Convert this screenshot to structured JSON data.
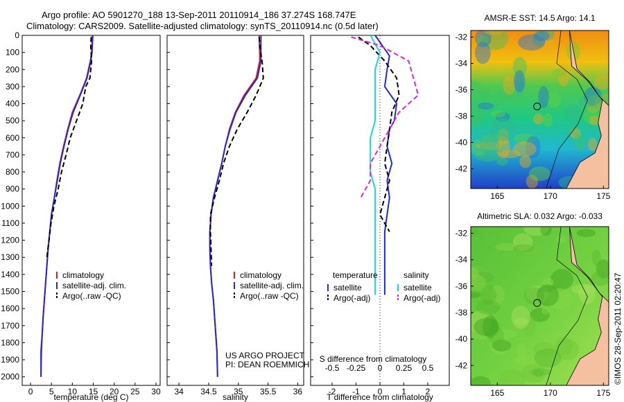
{
  "title_line1": "Argo profile: AO 5901270_188 13-Sep-2011 20110914_186 37.274S 168.747E",
  "title_line2": "Climatology: CARS2009. Satellite-adjusted climatology: synTS_20110914.nc (0.5d later)",
  "credit_line1": "US ARGO PROJECT",
  "credit_line2": "PI: DEAN ROEMMICH",
  "footer_stamp": "©IMOS 28-Sep-2011 02:20:47",
  "colors": {
    "red": "#e8141e",
    "blue": "#1e28dc",
    "cyan": "#10d8e8",
    "magenta": "#e020e0",
    "black": "#000000",
    "land": "#f4c0a0"
  },
  "chart_data": [
    {
      "type": "line",
      "xlabel": "temperature (deg C)",
      "ylabel": "",
      "xlim": [
        -2,
        31
      ],
      "ylim": [
        2050,
        0
      ],
      "xticks": [
        "0",
        "5",
        "10",
        "15",
        "20",
        "25",
        "30"
      ],
      "yticks": [
        "0",
        "100",
        "200",
        "300",
        "400",
        "500",
        "600",
        "700",
        "800",
        "900",
        "1000",
        "1100",
        "1200",
        "1300",
        "1400",
        "1500",
        "1600",
        "1700",
        "1800",
        "1900",
        "2000"
      ],
      "legend": [
        "climatology",
        "satellite-adj. clim.",
        "Argo(..raw -QC)"
      ],
      "series": [
        {
          "name": "climatology",
          "color": "red",
          "x": [
            14.8,
            14.6,
            14.3,
            13.4,
            11.8,
            10.0,
            8.9,
            7.9,
            7.0,
            6.3,
            5.7,
            5.0,
            4.6,
            4.2,
            3.9,
            3.6,
            3.3,
            3.0,
            2.8,
            2.6,
            2.5
          ],
          "y": [
            0,
            100,
            150,
            250,
            350,
            450,
            550,
            650,
            750,
            850,
            950,
            1050,
            1150,
            1250,
            1350,
            1450,
            1550,
            1650,
            1750,
            1850,
            2000
          ]
        },
        {
          "name": "satellite-adj. clim.",
          "color": "blue",
          "x": [
            14.9,
            14.7,
            14.4,
            13.5,
            11.9,
            10.2,
            9.0,
            8.0,
            7.1,
            6.4,
            5.7,
            5.0,
            4.6,
            4.2,
            3.9,
            3.6,
            3.3,
            3.0,
            2.8,
            2.5,
            2.5
          ],
          "y": [
            0,
            100,
            150,
            250,
            350,
            450,
            550,
            650,
            750,
            850,
            950,
            1050,
            1150,
            1250,
            1350,
            1450,
            1550,
            1650,
            1750,
            1850,
            2000
          ]
        },
        {
          "name": "Argo(..raw -QC)",
          "color": "black",
          "dash": true,
          "x": [
            14.5,
            14.4,
            14.6,
            14.2,
            13.2,
            12.5,
            11.0,
            9.5,
            8.5,
            7.4,
            6.6,
            5.6,
            4.9,
            4.4,
            3.9
          ],
          "y": [
            10,
            60,
            150,
            250,
            300,
            400,
            500,
            600,
            700,
            800,
            900,
            1000,
            1100,
            1200,
            1300
          ]
        }
      ]
    },
    {
      "type": "line",
      "xlabel": "salinity",
      "xlim": [
        33.8,
        36.1
      ],
      "ylim": [
        2050,
        0
      ],
      "xticks": [
        "34",
        "34.5",
        "35",
        "35.5",
        "36"
      ],
      "legend": [
        "climatology",
        "satellite-adj. clim.",
        "Argo(..raw -QC)"
      ],
      "series": [
        {
          "name": "climatology",
          "color": "red",
          "x": [
            35.35,
            35.36,
            35.36,
            35.3,
            35.1,
            34.95,
            34.85,
            34.78,
            34.72,
            34.65,
            34.58,
            34.54,
            34.52,
            34.52,
            34.53,
            34.55,
            34.58,
            34.6,
            34.62,
            34.64,
            34.65
          ],
          "y": [
            0,
            100,
            150,
            250,
            350,
            450,
            550,
            650,
            750,
            850,
            950,
            1050,
            1150,
            1250,
            1350,
            1450,
            1550,
            1650,
            1750,
            1850,
            2000
          ]
        },
        {
          "name": "satellite-adj. clim.",
          "color": "blue",
          "x": [
            35.38,
            35.38,
            35.38,
            35.32,
            35.12,
            34.96,
            34.86,
            34.78,
            34.72,
            34.65,
            34.58,
            34.54,
            34.52,
            34.52,
            34.53,
            34.55,
            34.58,
            34.6,
            34.62,
            34.64,
            34.65
          ],
          "y": [
            0,
            100,
            150,
            250,
            350,
            450,
            550,
            650,
            750,
            850,
            950,
            1050,
            1150,
            1250,
            1350,
            1450,
            1550,
            1650,
            1750,
            1850,
            2000
          ]
        },
        {
          "name": "Argo(..raw -QC)",
          "color": "black",
          "dash": true,
          "x": [
            35.35,
            35.36,
            35.4,
            35.42,
            35.3,
            35.15,
            34.98,
            34.85,
            34.75,
            34.68,
            34.6,
            34.53,
            34.53,
            34.54,
            34.55
          ],
          "y": [
            10,
            60,
            150,
            250,
            350,
            450,
            550,
            650,
            750,
            850,
            950,
            1050,
            1150,
            1250,
            1350
          ]
        }
      ]
    },
    {
      "type": "line",
      "xlabel": "T difference from climatology",
      "xlabel2": "S difference from climatology",
      "xlim": [
        -2.9,
        2.9
      ],
      "ylim": [
        2050,
        0
      ],
      "xticks": [
        "-2",
        "-1",
        "0",
        "1",
        "2"
      ],
      "xticks_s": [
        "-0.5",
        "-0.25",
        "0",
        "0.25",
        "0.5"
      ],
      "legend_t_title": "temperature",
      "legend_s_title": "salinity",
      "legend": [
        "satellite",
        "Argo(-adj)",
        "satellite",
        "Argo(-adj)"
      ],
      "series": [
        {
          "name": "satellite",
          "group": "temperature",
          "color": "blue",
          "x": [
            -0.2,
            0.1,
            0.4,
            0.3,
            0.2,
            0.7,
            0.6,
            0.4,
            0.3,
            0.5,
            0.3,
            0.4,
            0.3,
            0.2,
            0.2,
            0.2
          ],
          "y": [
            0,
            60,
            120,
            200,
            300,
            400,
            500,
            550,
            650,
            750,
            850,
            950,
            1050,
            1150,
            1300,
            1520
          ]
        },
        {
          "name": "Argo(-adj)",
          "group": "temperature",
          "color": "black",
          "dash": true,
          "x": [
            -0.9,
            -0.4,
            0.2,
            0.7,
            0.8,
            0.5,
            0.4,
            0.3,
            0.2,
            0.4,
            0.2,
            0.0,
            0.4
          ],
          "y": [
            10,
            60,
            150,
            250,
            350,
            450,
            550,
            650,
            750,
            850,
            950,
            1050,
            1150
          ]
        },
        {
          "name": "satellite",
          "group": "salinity",
          "color": "cyan",
          "x": [
            -0.1,
            0.0,
            -0.05,
            -0.05,
            -0.05,
            -0.05,
            -0.1,
            -0.1,
            -0.1,
            -0.05,
            -0.05,
            -0.05,
            -0.05
          ],
          "y": [
            0,
            100,
            200,
            300,
            400,
            500,
            600,
            700,
            800,
            900,
            1000,
            1200,
            1520
          ]
        },
        {
          "name": "Argo(-adj)",
          "group": "salinity",
          "color": "magenta",
          "dash": true,
          "x": [
            -0.3,
            0.0,
            0.3,
            0.35,
            0.4,
            0.2,
            0.1,
            0.0,
            -0.1,
            -0.1,
            -0.2
          ],
          "y": [
            10,
            60,
            150,
            250,
            350,
            450,
            550,
            650,
            750,
            850,
            950
          ]
        }
      ]
    },
    {
      "type": "heatmap",
      "title": "AMSR-E SST: 14.5 Argo: 14.1",
      "xticks": [
        "165",
        "170",
        "175"
      ],
      "yticks": [
        "-32",
        "-34",
        "-36",
        "-38",
        "-40",
        "-42"
      ],
      "xlim": [
        162.5,
        175.5
      ],
      "ylim": [
        -43.5,
        -31.5
      ],
      "marker": {
        "lon": 168.75,
        "lat": -37.27
      }
    },
    {
      "type": "heatmap",
      "title": "Altimetric SLA: 0.032 Argo: -0.033",
      "xticks": [
        "165",
        "170",
        "175"
      ],
      "yticks": [
        "-32",
        "-34",
        "-36",
        "-38",
        "-40",
        "-42"
      ],
      "xlim": [
        162.5,
        175.5
      ],
      "ylim": [
        -43.5,
        -31.5
      ],
      "marker": {
        "lon": 168.75,
        "lat": -37.27
      }
    }
  ]
}
